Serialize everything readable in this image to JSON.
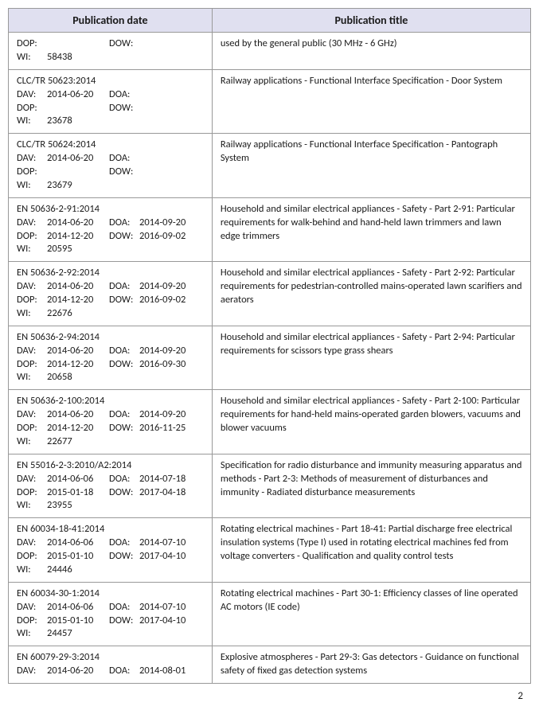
{
  "header": {
    "col_date": "Publication date",
    "col_title": "Publication title"
  },
  "rows": [
    {
      "lines": [
        {
          "labelA": "DOP:",
          "valueA": "",
          "labelB": "DOW:",
          "valueB": ""
        },
        {
          "labelA": "WI:",
          "valueA": "58438",
          "labelB": "",
          "valueB": ""
        }
      ],
      "title": "used by the general public (30 MHz - 6 GHz)"
    },
    {
      "lines": [
        {
          "labelA": "",
          "valueA": "",
          "labelB": "",
          "valueB": "",
          "full": "CLC/TR 50623:2014"
        },
        {
          "labelA": "DAV:",
          "valueA": "2014-06-20",
          "labelB": "DOA:",
          "valueB": ""
        },
        {
          "labelA": "DOP:",
          "valueA": "",
          "labelB": "DOW:",
          "valueB": ""
        },
        {
          "labelA": "WI:",
          "valueA": "23678",
          "labelB": "",
          "valueB": ""
        }
      ],
      "title": "Railway applications - Functional Interface Specification - Door System"
    },
    {
      "lines": [
        {
          "full": "CLC/TR 50624:2014"
        },
        {
          "labelA": "DAV:",
          "valueA": "2014-06-20",
          "labelB": "DOA:",
          "valueB": ""
        },
        {
          "labelA": "DOP:",
          "valueA": "",
          "labelB": "DOW:",
          "valueB": ""
        },
        {
          "labelA": "WI:",
          "valueA": "23679",
          "labelB": "",
          "valueB": ""
        }
      ],
      "title": "Railway applications - Functional Interface Specification - Pantograph System"
    },
    {
      "lines": [
        {
          "full": "EN 50636-2-91:2014"
        },
        {
          "labelA": "DAV:",
          "valueA": "2014-06-20",
          "labelB": "DOA:",
          "valueB": "2014-09-20"
        },
        {
          "labelA": "DOP:",
          "valueA": "2014-12-20",
          "labelB": "DOW:",
          "valueB": "2016-09-02"
        },
        {
          "labelA": "WI:",
          "valueA": "20595",
          "labelB": "",
          "valueB": ""
        }
      ],
      "title": "Household and similar electrical appliances - Safety - Part 2-91: Particular requirements for walk-behind and hand-held lawn trimmers and lawn edge trimmers"
    },
    {
      "lines": [
        {
          "full": "EN 50636-2-92:2014"
        },
        {
          "labelA": "DAV:",
          "valueA": "2014-06-20",
          "labelB": "DOA:",
          "valueB": "2014-09-20"
        },
        {
          "labelA": "DOP:",
          "valueA": "2014-12-20",
          "labelB": "DOW:",
          "valueB": "2016-09-02"
        },
        {
          "labelA": "WI:",
          "valueA": "22676",
          "labelB": "",
          "valueB": ""
        }
      ],
      "title": "Household and similar electrical appliances - Safety - Part 2-92: Particular requirements for pedestrian-controlled mains-operated lawn scarifiers and aerators"
    },
    {
      "lines": [
        {
          "full": "EN 50636-2-94:2014"
        },
        {
          "labelA": "DAV:",
          "valueA": "2014-06-20",
          "labelB": "DOA:",
          "valueB": "2014-09-20"
        },
        {
          "labelA": "DOP:",
          "valueA": "2014-12-20",
          "labelB": "DOW:",
          "valueB": "2016-09-30"
        },
        {
          "labelA": "WI:",
          "valueA": "20658",
          "labelB": "",
          "valueB": ""
        }
      ],
      "title": "Household and similar electrical appliances - Safety - Part 2-94: Particular requirements for scissors type grass shears"
    },
    {
      "lines": [
        {
          "full": "EN 50636-2-100:2014"
        },
        {
          "labelA": "DAV:",
          "valueA": "2014-06-20",
          "labelB": "DOA:",
          "valueB": "2014-09-20"
        },
        {
          "labelA": "DOP:",
          "valueA": "2014-12-20",
          "labelB": "DOW:",
          "valueB": "2016-11-25"
        },
        {
          "labelA": "WI:",
          "valueA": "22677",
          "labelB": "",
          "valueB": ""
        }
      ],
      "title": "Household and similar electrical appliances - Safety - Part 2-100: Particular requirements for hand-held mains-operated garden blowers, vacuums and blower vacuums"
    },
    {
      "lines": [
        {
          "full": "EN 55016-2-3:2010/A2:2014"
        },
        {
          "labelA": "DAV:",
          "valueA": "2014-06-06",
          "labelB": "DOA:",
          "valueB": "2014-07-18"
        },
        {
          "labelA": "DOP:",
          "valueA": "2015-01-18",
          "labelB": "DOW:",
          "valueB": "2017-04-18"
        },
        {
          "labelA": "WI:",
          "valueA": "23955",
          "labelB": "",
          "valueB": ""
        }
      ],
      "title": "Specification for radio disturbance and immunity measuring apparatus and methods - Part 2-3: Methods of measurement of disturbances and immunity - Radiated disturbance measurements"
    },
    {
      "lines": [
        {
          "full": "EN 60034-18-41:2014"
        },
        {
          "labelA": "DAV:",
          "valueA": "2014-06-06",
          "labelB": "DOA:",
          "valueB": "2014-07-10"
        },
        {
          "labelA": "DOP:",
          "valueA": "2015-01-10",
          "labelB": "DOW:",
          "valueB": "2017-04-10"
        },
        {
          "labelA": "WI:",
          "valueA": "24446",
          "labelB": "",
          "valueB": ""
        }
      ],
      "title": "Rotating electrical machines - Part 18-41: Partial discharge free electrical insulation systems (Type I) used in rotating electrical machines fed from voltage converters - Qualification and quality control tests"
    },
    {
      "lines": [
        {
          "full": "EN 60034-30-1:2014"
        },
        {
          "labelA": "DAV:",
          "valueA": "2014-06-06",
          "labelB": "DOA:",
          "valueB": "2014-07-10"
        },
        {
          "labelA": "DOP:",
          "valueA": "2015-01-10",
          "labelB": "DOW:",
          "valueB": "2017-04-10"
        },
        {
          "labelA": "WI:",
          "valueA": "24457",
          "labelB": "",
          "valueB": ""
        }
      ],
      "title": "Rotating electrical machines - Part 30-1: Efficiency classes of line operated AC motors (IE code)"
    },
    {
      "lines": [
        {
          "full": "EN 60079-29-3:2014"
        },
        {
          "labelA": "DAV:",
          "valueA": "2014-06-20",
          "labelB": "DOA:",
          "valueB": "2014-08-01"
        }
      ],
      "title": "Explosive atmospheres - Part 29-3: Gas detectors - Guidance on functional safety of fixed gas detection systems"
    }
  ],
  "page_number": "2"
}
